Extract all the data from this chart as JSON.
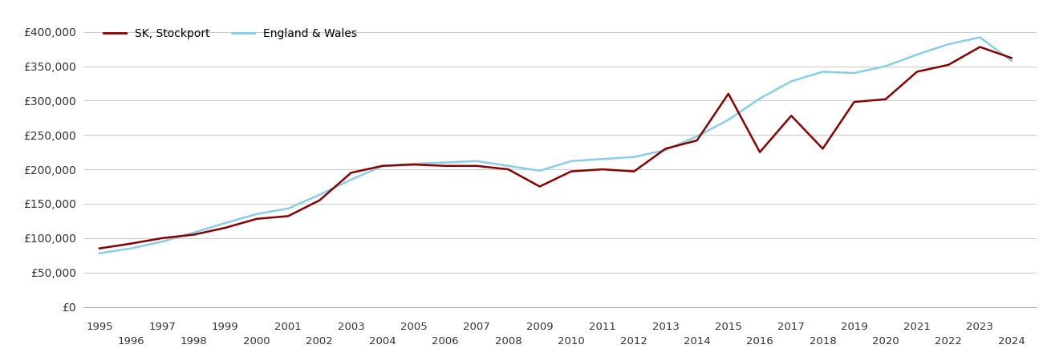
{
  "sk_years": [
    1995,
    1996,
    1997,
    1998,
    1999,
    2000,
    2001,
    2002,
    2003,
    2004,
    2005,
    2006,
    2007,
    2008,
    2009,
    2010,
    2011,
    2012,
    2013,
    2014,
    2015,
    2016,
    2017,
    2018,
    2019,
    2020,
    2021,
    2022,
    2023,
    2024
  ],
  "sk_values": [
    85000,
    92000,
    100000,
    105000,
    115000,
    128000,
    132000,
    155000,
    195000,
    205000,
    207000,
    205000,
    205000,
    200000,
    175000,
    197000,
    200000,
    197000,
    230000,
    242000,
    310000,
    225000,
    278000,
    230000,
    298000,
    302000,
    342000,
    352000,
    378000,
    362000
  ],
  "ew_years": [
    1995,
    1996,
    1997,
    1998,
    1999,
    2000,
    2001,
    2002,
    2003,
    2004,
    2005,
    2006,
    2007,
    2008,
    2009,
    2010,
    2011,
    2012,
    2013,
    2014,
    2015,
    2016,
    2017,
    2018,
    2019,
    2020,
    2021,
    2022,
    2023,
    2024
  ],
  "ew_values": [
    78000,
    85000,
    95000,
    108000,
    122000,
    135000,
    143000,
    163000,
    185000,
    205000,
    208000,
    210000,
    212000,
    205000,
    198000,
    212000,
    215000,
    218000,
    228000,
    248000,
    272000,
    303000,
    328000,
    342000,
    340000,
    350000,
    367000,
    382000,
    392000,
    358000
  ],
  "sk_color": "#8B0000",
  "ew_color": "#87CEEB",
  "sk_label": "SK, Stockport",
  "ew_label": "England & Wales",
  "ylim": [
    0,
    420000
  ],
  "yticks": [
    0,
    50000,
    100000,
    150000,
    200000,
    250000,
    300000,
    350000,
    400000
  ],
  "ytick_labels": [
    "£0",
    "£50,000",
    "£100,000",
    "£150,000",
    "£200,000",
    "£250,000",
    "£300,000",
    "£350,000",
    "£400,000"
  ],
  "xticks_odd": [
    1995,
    1997,
    1999,
    2001,
    2003,
    2005,
    2007,
    2009,
    2011,
    2013,
    2015,
    2017,
    2019,
    2021,
    2023
  ],
  "xticks_even": [
    1996,
    1998,
    2000,
    2002,
    2004,
    2006,
    2008,
    2010,
    2012,
    2014,
    2016,
    2018,
    2020,
    2022,
    2024
  ],
  "background_color": "#ffffff",
  "grid_color": "#cccccc",
  "line_width": 1.8,
  "xlim_left": 1994.5,
  "xlim_right": 2024.8
}
